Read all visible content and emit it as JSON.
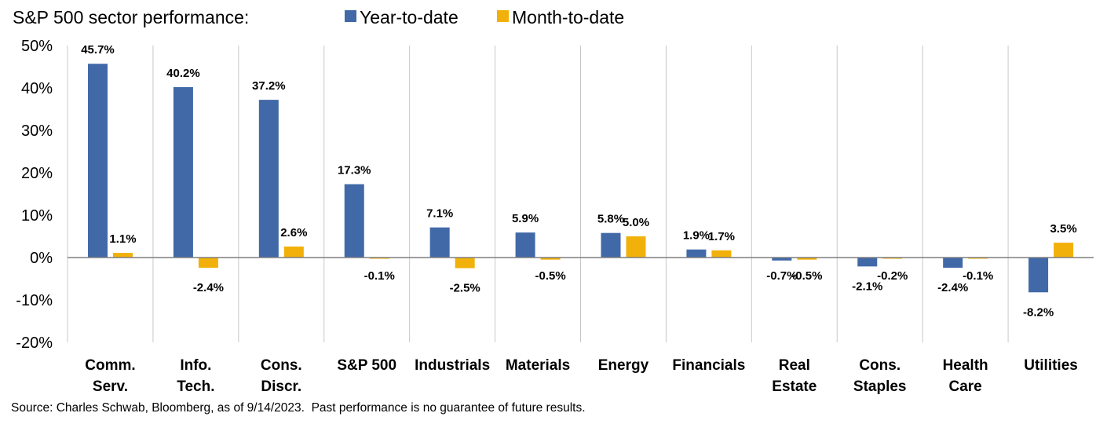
{
  "chart_data": {
    "type": "bar",
    "title": "S&P 500 sector performance:",
    "categories": [
      [
        "Comm.",
        "Serv."
      ],
      [
        "Info.",
        "Tech."
      ],
      [
        "Cons.",
        "Discr."
      ],
      [
        "S&P 500"
      ],
      [
        "Industrials"
      ],
      [
        "Materials"
      ],
      [
        "Energy"
      ],
      [
        "Financials"
      ],
      [
        "Real",
        "Estate"
      ],
      [
        "Cons.",
        "Staples"
      ],
      [
        "Health",
        "Care"
      ],
      [
        "Utilities"
      ]
    ],
    "series": [
      {
        "name": "Year-to-date",
        "color": "#4169A8",
        "values": [
          45.7,
          40.2,
          37.2,
          17.3,
          7.1,
          5.9,
          5.8,
          1.9,
          -0.7,
          -2.1,
          -2.4,
          -8.2
        ],
        "labels": [
          "45.7%",
          "40.2%",
          "37.2%",
          "17.3%",
          "7.1%",
          "5.9%",
          "5.8%",
          "1.9%",
          "-0.7%",
          "-2.1%",
          "-2.4%",
          "-8.2%"
        ]
      },
      {
        "name": "Month-to-date",
        "color": "#F2B10A",
        "values": [
          1.1,
          -2.4,
          2.6,
          -0.1,
          -2.5,
          -0.5,
          5.0,
          1.7,
          -0.5,
          -0.2,
          -0.1,
          3.5
        ],
        "labels": [
          "1.1%",
          "-2.4%",
          "2.6%",
          "-0.1%",
          "-2.5%",
          "-0.5%",
          "5.0%",
          "1.7%",
          "-0.5%",
          "-0.2%",
          "-0.1%",
          "3.5%"
        ]
      }
    ],
    "yticks": [
      "50%",
      "40%",
      "30%",
      "20%",
      "10%",
      "0%",
      "-10%",
      "-20%"
    ],
    "ytick_values": [
      50,
      40,
      30,
      20,
      10,
      0,
      -10,
      -20
    ],
    "ylim": [
      -20,
      50
    ],
    "xlabel": "",
    "ylabel": "",
    "grid": "vertical category separators",
    "legend": "top, inline with title"
  },
  "footer": {
    "source": "Source: Charles Schwab, Bloomberg, as of 9/14/2023.",
    "disclaimer": "Past performance is no guarantee of future results."
  }
}
